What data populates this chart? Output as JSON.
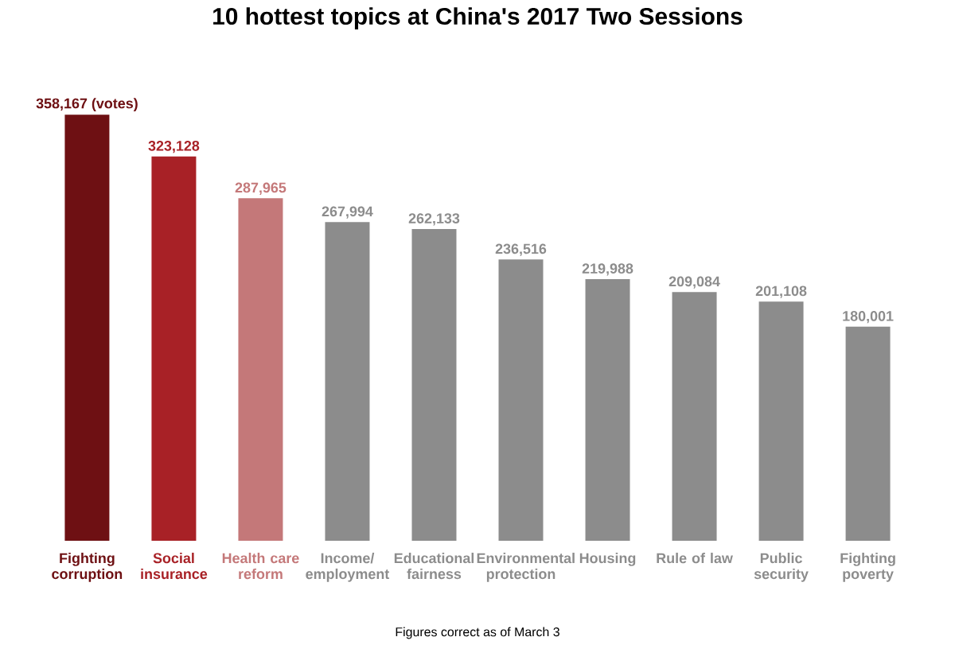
{
  "chart_data": {
    "type": "bar",
    "title": "10 hottest topics at China's 2017 Two Sessions",
    "categories": [
      "Fighting corruption",
      "Social insurance",
      "Health care reform",
      "Income/ employment",
      "Educational fairness",
      "Environmental protection",
      "Housing",
      "Rule of law",
      "Public security",
      "Fighting poverty"
    ],
    "values": [
      358167,
      323128,
      287965,
      267994,
      262133,
      236516,
      219988,
      209084,
      201108,
      180001
    ],
    "value_labels": [
      "358,167 (votes)",
      "323,128",
      "287,965",
      "267,994",
      "262,133",
      "236,516",
      "219,988",
      "209,084",
      "201,108",
      "180,001"
    ],
    "colors": [
      "#6e1013",
      "#a82126",
      "#c47879",
      "#8c8c8c",
      "#8c8c8c",
      "#8c8c8c",
      "#8c8c8c",
      "#8c8c8c",
      "#8c8c8c",
      "#8c8c8c"
    ],
    "annotations": [
      "Figures correct as of March 3"
    ]
  }
}
